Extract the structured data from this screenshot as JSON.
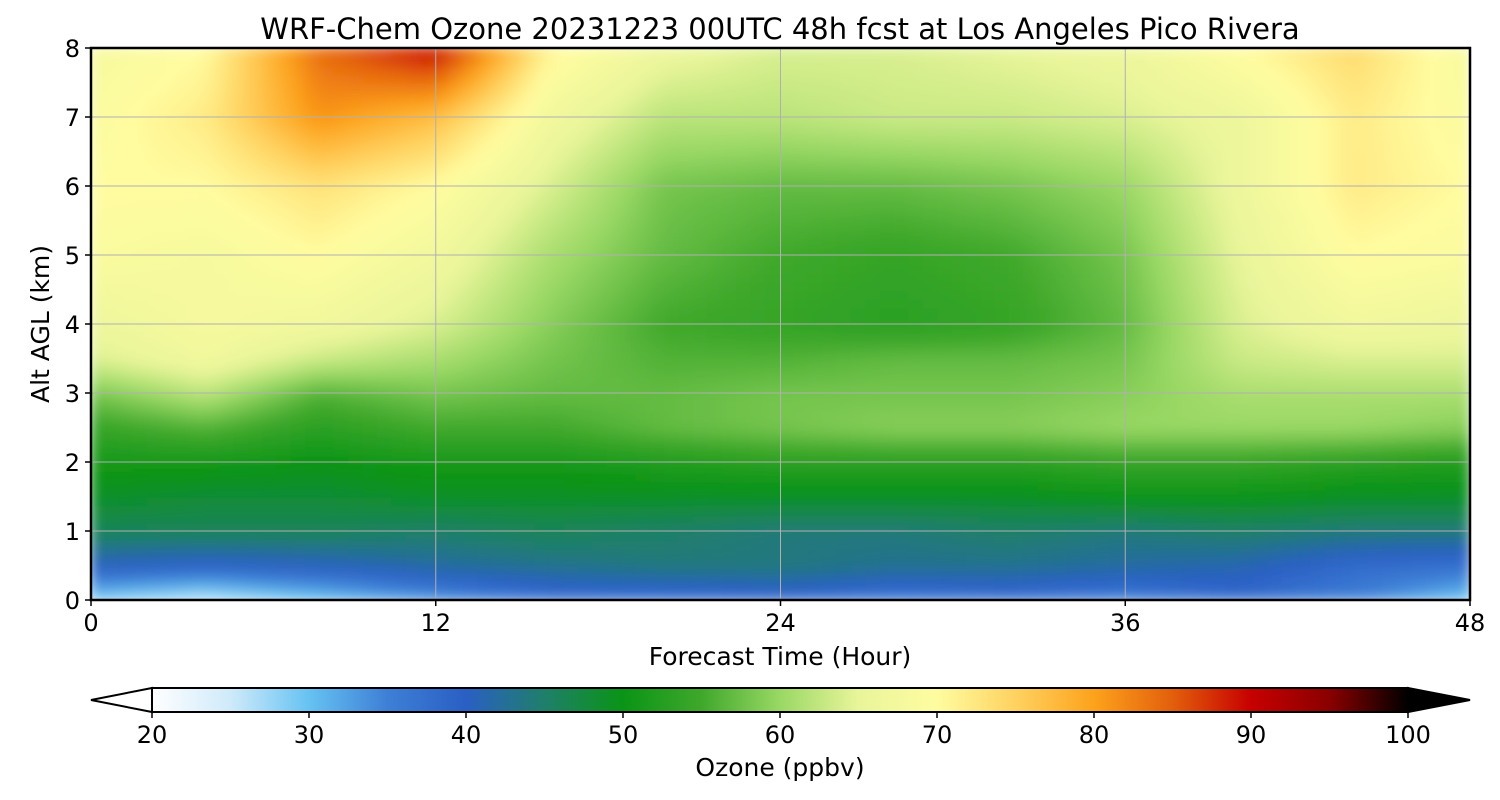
{
  "chart_data": {
    "type": "heatmap",
    "title": "WRF-Chem Ozone  20231223 00UTC 48h fcst at Los Angeles Pico Rivera",
    "xlabel": "Forecast Time (Hour)",
    "ylabel": "Alt AGL (km)",
    "xlim": [
      0,
      48
    ],
    "ylim": [
      0,
      8
    ],
    "x_ticks": [
      "0",
      "12",
      "24",
      "36",
      "48"
    ],
    "y_ticks": [
      "0",
      "1",
      "2",
      "3",
      "4",
      "5",
      "6",
      "7",
      "8"
    ],
    "grid": true,
    "x": [
      0,
      4,
      8,
      12,
      16,
      20,
      24,
      28,
      32,
      36,
      40,
      44,
      48
    ],
    "y": [
      0,
      0.5,
      1,
      1.5,
      2,
      2.5,
      3,
      3.5,
      4,
      5,
      6,
      7,
      8
    ],
    "z": [
      [
        28,
        25,
        29,
        33,
        37,
        37,
        38,
        36,
        37,
        35,
        38,
        35,
        29
      ],
      [
        40,
        39,
        40,
        42,
        43,
        44,
        44,
        43,
        43,
        42,
        41,
        38,
        37
      ],
      [
        46,
        46,
        46,
        45,
        46,
        45,
        44,
        44,
        45,
        44,
        45,
        44,
        44
      ],
      [
        49,
        48,
        48,
        49,
        49,
        49,
        49,
        49,
        49,
        50,
        50,
        49,
        49
      ],
      [
        51,
        51,
        50,
        51,
        51,
        52,
        53,
        53,
        53,
        54,
        54,
        53,
        52
      ],
      [
        54,
        56,
        53,
        55,
        55,
        57,
        58,
        59,
        59,
        60,
        60,
        60,
        59
      ],
      [
        58,
        62,
        56,
        58,
        57,
        57,
        58,
        58,
        58,
        59,
        61,
        61,
        61
      ],
      [
        64,
        67,
        63,
        61,
        58,
        56,
        56,
        57,
        57,
        58,
        63,
        64,
        64
      ],
      [
        66,
        68,
        67,
        64,
        59,
        55,
        54,
        53,
        54,
        57,
        64,
        67,
        66
      ],
      [
        69,
        68,
        70,
        67,
        61,
        57,
        55,
        54,
        55,
        58,
        65,
        70,
        69
      ],
      [
        70,
        70,
        73,
        70,
        64,
        58,
        57,
        57,
        58,
        60,
        66,
        72,
        70
      ],
      [
        69,
        72,
        81,
        77,
        67,
        62,
        62,
        63,
        63,
        64,
        66,
        72,
        69
      ],
      [
        68,
        70,
        84,
        90,
        71,
        66,
        64,
        64,
        65,
        66,
        70,
        74,
        68
      ]
    ],
    "colorbar": {
      "label": "Ozone  (ppbv)",
      "min": 20,
      "max": 100,
      "ticks": [
        "20",
        "30",
        "40",
        "50",
        "60",
        "70",
        "80",
        "90",
        "100"
      ],
      "extend": "both",
      "colors": [
        "#ffffff",
        "#cfeafa",
        "#66c2f2",
        "#3e7fd6",
        "#2a5fc4",
        "#1f7f6a",
        "#0a9416",
        "#3fa82b",
        "#9ad865",
        "#e9f59a",
        "#fffca0",
        "#ffd260",
        "#fda21c",
        "#e35f0c",
        "#c70000",
        "#8a0000",
        "#000000"
      ]
    }
  }
}
